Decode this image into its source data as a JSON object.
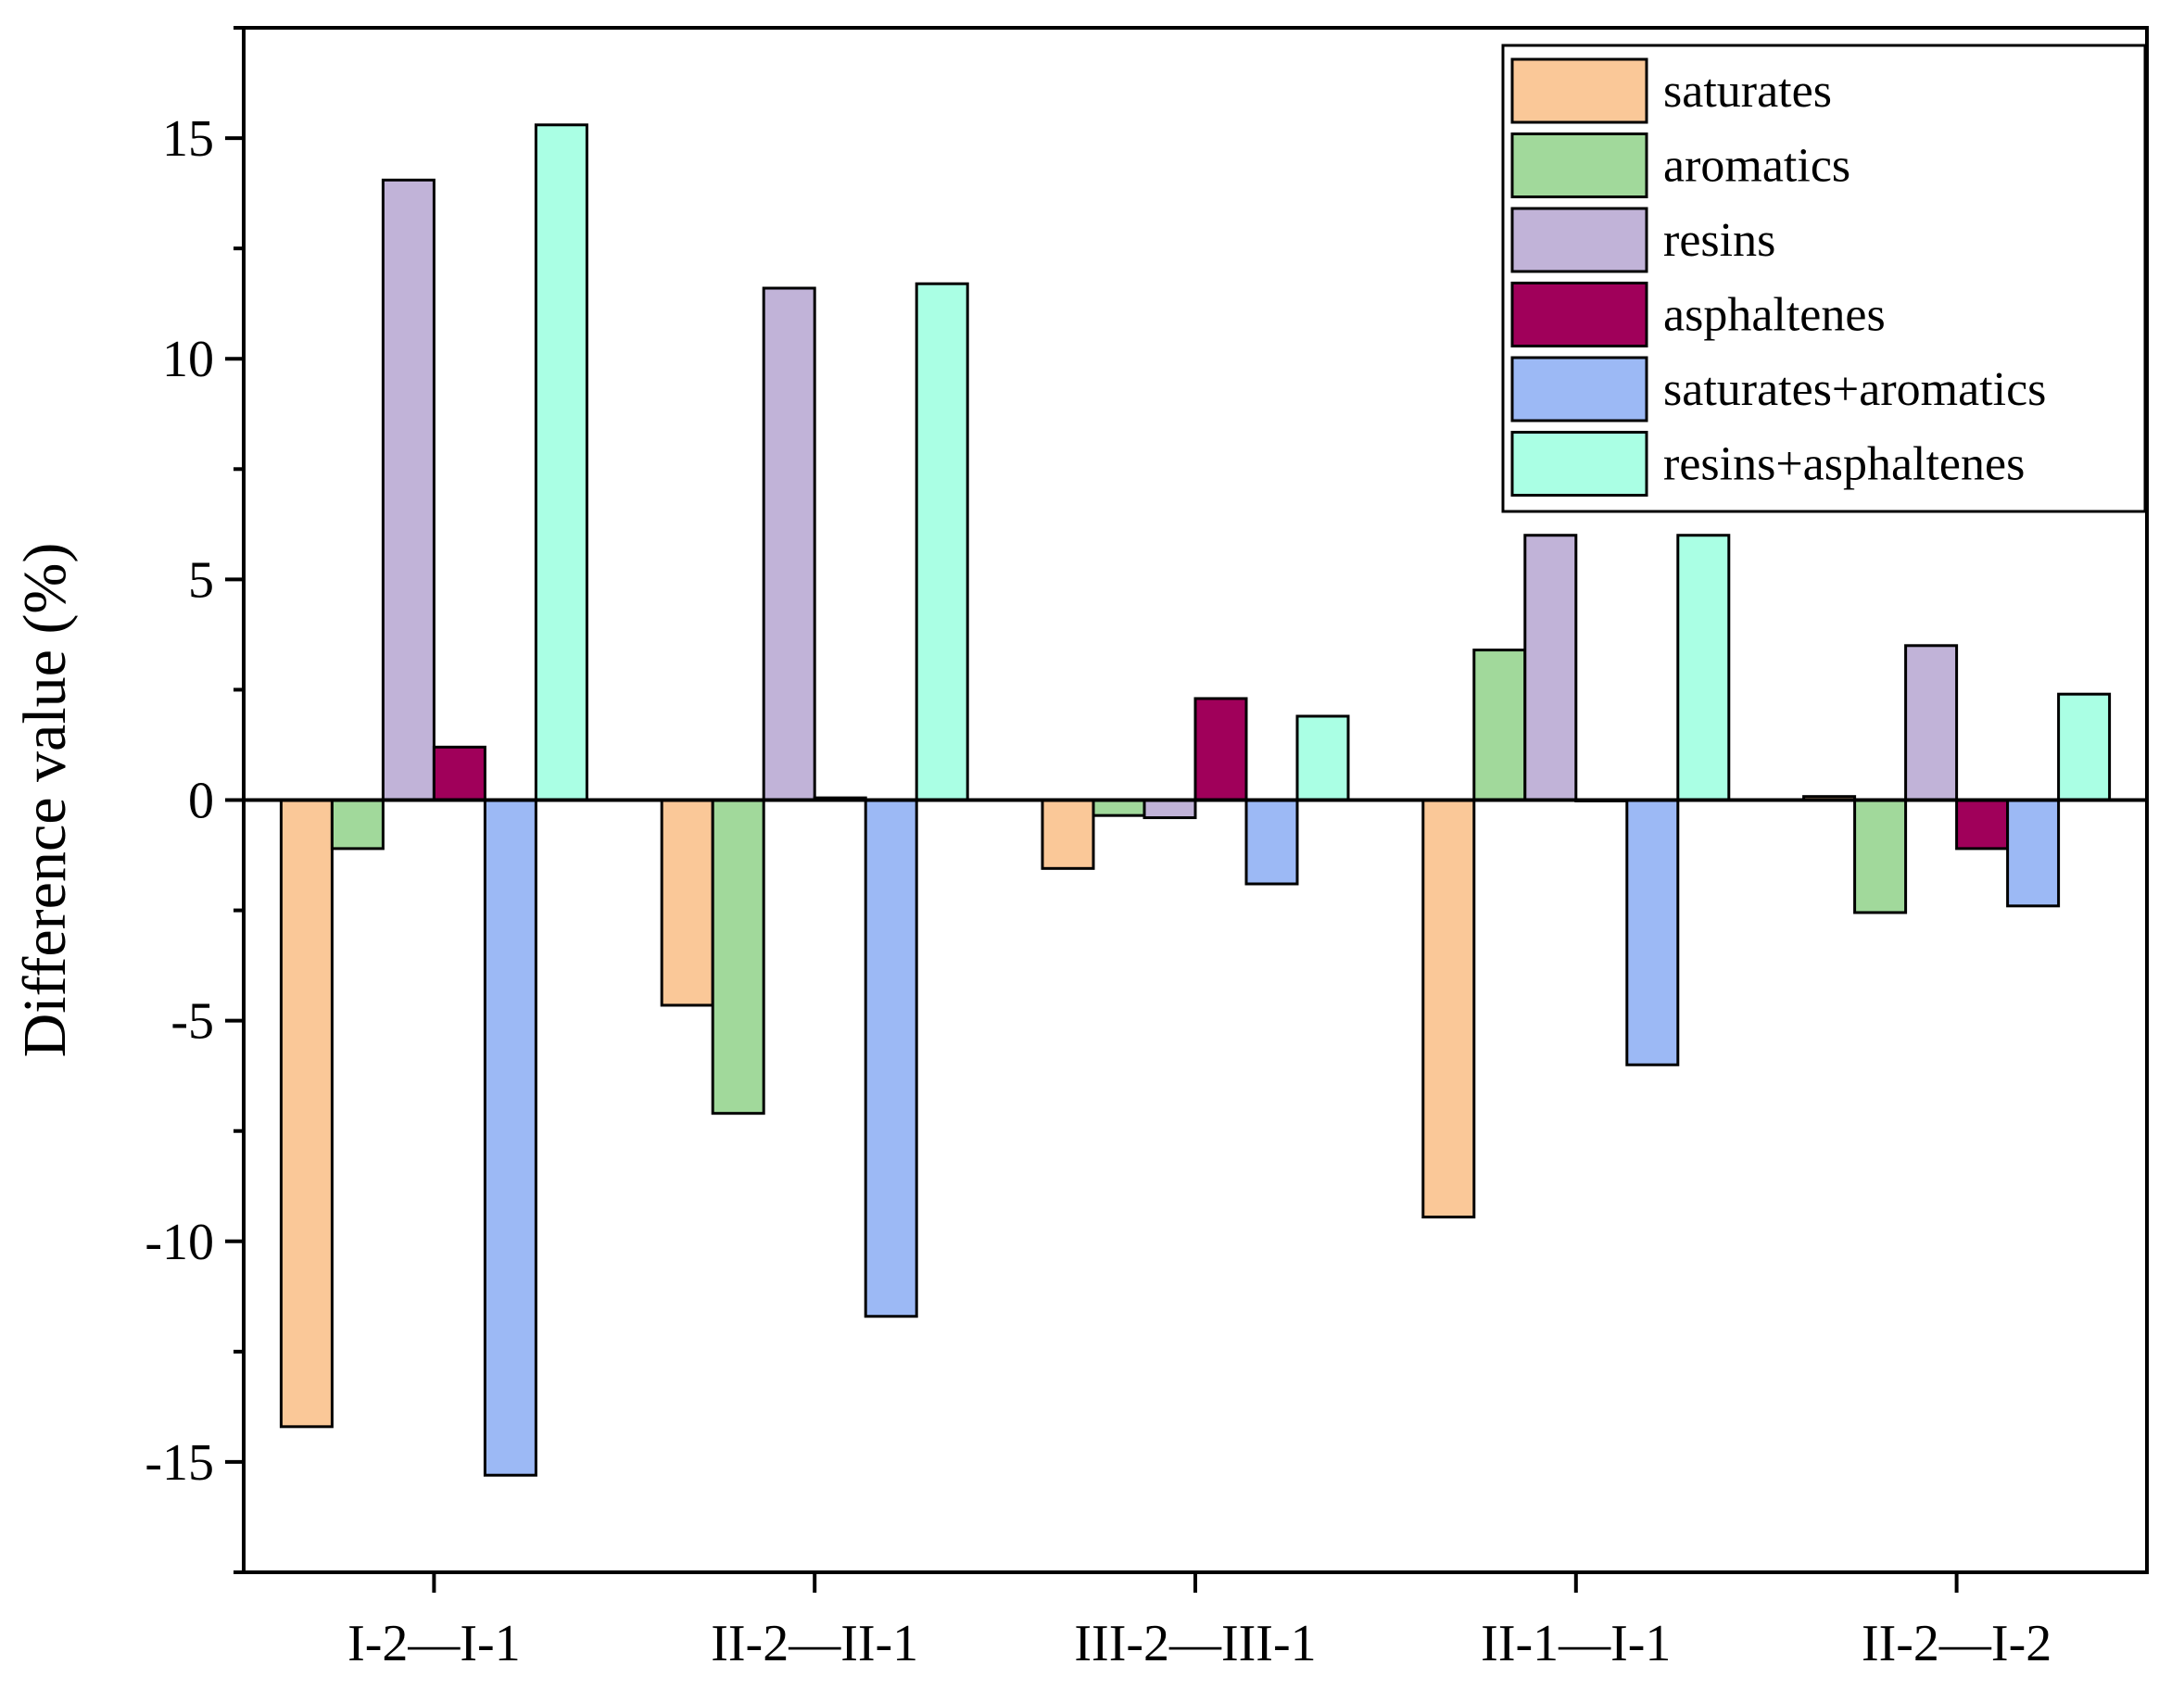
{
  "chart_data": {
    "type": "bar",
    "title": "",
    "xlabel": "",
    "ylabel": "Difference value (%)",
    "ylim": [
      -17.5,
      17.5
    ],
    "yticks": [
      -15,
      -10,
      -5,
      0,
      5,
      10,
      15
    ],
    "ytick_labels": [
      "-15",
      "-10",
      "-5",
      "0",
      "5",
      "10",
      "15"
    ],
    "grid": false,
    "legend_position": "top-right",
    "categories": [
      "I-2—I-1",
      "II-2—II-1",
      "III-2—III-1",
      "II-1—I-1",
      "II-2—I-2"
    ],
    "series": [
      {
        "name": "saturates",
        "color": "#FAC898",
        "values": [
          -14.2,
          -4.65,
          -1.55,
          -9.45,
          0.08
        ]
      },
      {
        "name": "aromatics",
        "color": "#A1D99B",
        "values": [
          -1.1,
          -7.1,
          -0.35,
          3.4,
          -2.55
        ]
      },
      {
        "name": "resins",
        "color": "#C1B3D8",
        "values": [
          14.05,
          11.6,
          -0.4,
          6.0,
          3.5
        ]
      },
      {
        "name": "asphaltenes",
        "color": "#A0005A",
        "values": [
          1.2,
          0.05,
          2.3,
          0.0,
          -1.1
        ]
      },
      {
        "name": "saturates+aromatics",
        "color": "#9CB9F5",
        "values": [
          -15.3,
          -11.7,
          -1.9,
          -6.0,
          -2.4
        ]
      },
      {
        "name": "resins+asphaltenes",
        "color": "#AAFFE4",
        "values": [
          15.3,
          11.7,
          1.9,
          6.0,
          2.4
        ]
      }
    ]
  }
}
